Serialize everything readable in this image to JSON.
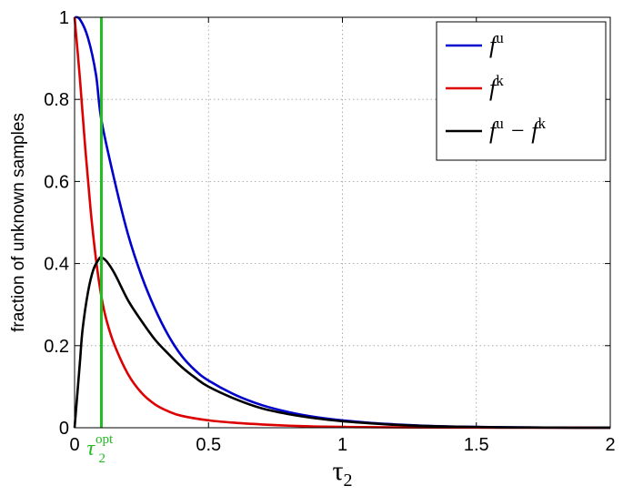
{
  "chart_data": {
    "type": "line",
    "title": "",
    "xlabel": "τ",
    "xlabel_sub": "2",
    "ylabel": "fraction of unknown samples",
    "xlim": [
      0,
      2
    ],
    "ylim": [
      0,
      1
    ],
    "xticks": [
      0,
      0.5,
      1,
      1.5,
      2
    ],
    "xtick_labels": [
      "0",
      "0.5",
      "1",
      "1.5",
      "2"
    ],
    "yticks": [
      0,
      0.2,
      0.4,
      0.6,
      0.8,
      1
    ],
    "ytick_labels": [
      "0",
      "0.2",
      "0.4",
      "0.6",
      "0.8",
      "1"
    ],
    "grid": true,
    "legend_position": "top-right",
    "series": [
      {
        "name": "f",
        "name_sup": "u",
        "color": "#0000cc",
        "x": [
          0,
          0.02,
          0.05,
          0.08,
          0.1,
          0.15,
          0.2,
          0.25,
          0.3,
          0.35,
          0.4,
          0.45,
          0.5,
          0.6,
          0.7,
          0.8,
          0.9,
          1.0,
          1.1,
          1.2,
          1.3,
          1.4,
          1.5,
          1.6,
          1.7,
          1.8,
          1.9,
          2.0
        ],
        "y": [
          1.0,
          0.995,
          0.95,
          0.86,
          0.75,
          0.6,
          0.47,
          0.37,
          0.29,
          0.225,
          0.175,
          0.14,
          0.115,
          0.08,
          0.055,
          0.038,
          0.026,
          0.018,
          0.012,
          0.008,
          0.005,
          0.003,
          0.002,
          0.0012,
          0.0007,
          0.0004,
          0.0002,
          0.0001
        ]
      },
      {
        "name": "f",
        "name_sup": "k",
        "color": "#dd0000",
        "x": [
          0,
          0.02,
          0.04,
          0.06,
          0.08,
          0.1,
          0.12,
          0.15,
          0.2,
          0.25,
          0.3,
          0.35,
          0.4,
          0.5,
          0.6,
          0.7,
          0.8,
          0.9,
          1.0,
          1.2,
          1.4,
          1.6,
          1.8,
          2.0
        ],
        "y": [
          1.0,
          0.85,
          0.68,
          0.53,
          0.41,
          0.32,
          0.26,
          0.2,
          0.13,
          0.085,
          0.057,
          0.04,
          0.029,
          0.018,
          0.012,
          0.008,
          0.005,
          0.003,
          0.002,
          0.001,
          0.0005,
          0.0002,
          0.0001,
          0.0
        ]
      },
      {
        "name": "f",
        "name_sup": "u",
        "name_tail": " − f",
        "name_tail_sup": "k",
        "color": "#000000",
        "x": [
          0,
          0.01,
          0.02,
          0.03,
          0.05,
          0.07,
          0.09,
          0.1,
          0.12,
          0.15,
          0.2,
          0.25,
          0.3,
          0.35,
          0.4,
          0.45,
          0.5,
          0.6,
          0.7,
          0.8,
          0.9,
          1.0,
          1.1,
          1.2,
          1.3,
          1.4,
          1.5,
          1.6,
          1.7,
          1.8,
          1.9,
          2.0
        ],
        "y": [
          0.0,
          0.08,
          0.16,
          0.24,
          0.33,
          0.385,
          0.41,
          0.415,
          0.405,
          0.375,
          0.31,
          0.26,
          0.215,
          0.18,
          0.148,
          0.122,
          0.1,
          0.07,
          0.047,
          0.033,
          0.023,
          0.016,
          0.011,
          0.007,
          0.0045,
          0.003,
          0.0018,
          0.001,
          0.0006,
          0.0003,
          0.0002,
          0.0001
        ]
      }
    ],
    "vertical_line": {
      "x": 0.1,
      "color": "#22bb22",
      "label": "τ",
      "label_sub": "2",
      "label_sup": "opt"
    }
  }
}
